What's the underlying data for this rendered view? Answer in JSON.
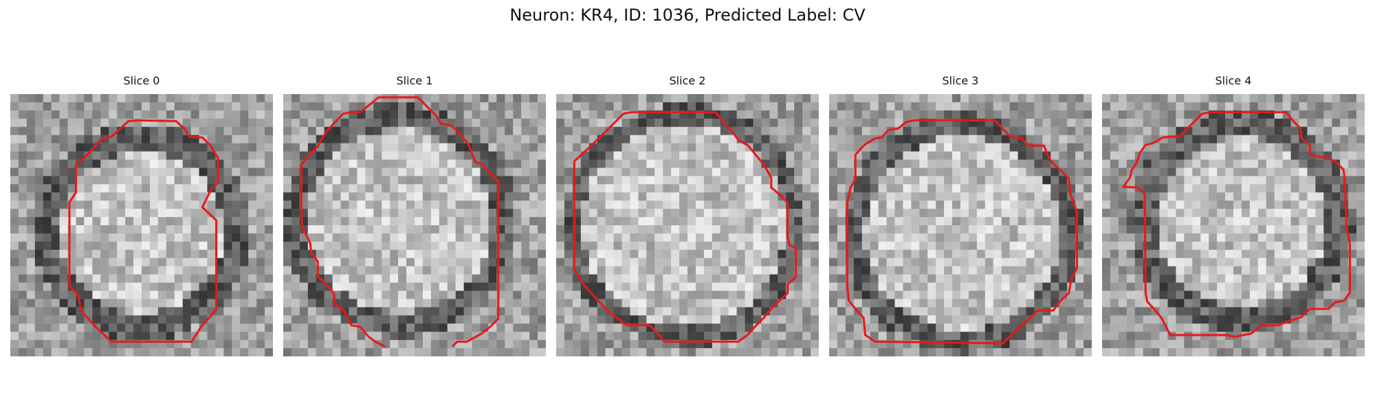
{
  "figure": {
    "title": "Neuron: KR4, ID: 1036, Predicted Label: CV",
    "contour_color": "#e8191c"
  },
  "panels": [
    {
      "title": "Slice 0"
    },
    {
      "title": "Slice 1"
    },
    {
      "title": "Slice 2"
    },
    {
      "title": "Slice 3"
    },
    {
      "title": "Slice 4"
    }
  ]
}
